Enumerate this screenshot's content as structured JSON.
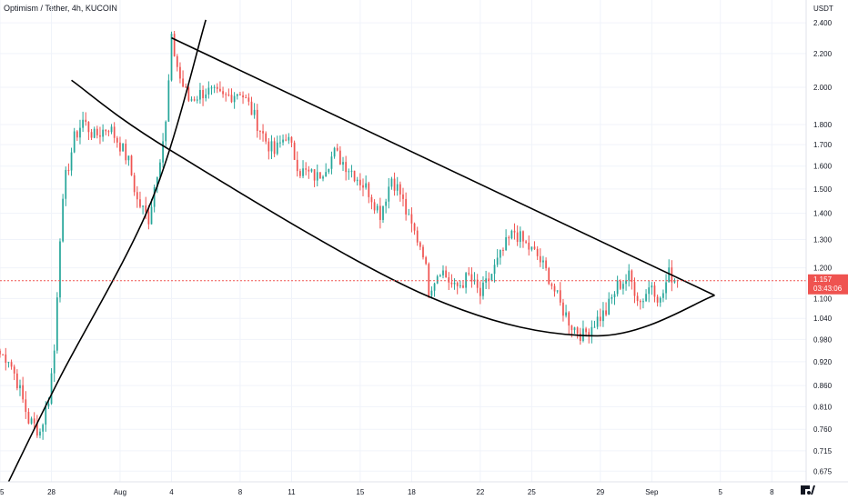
{
  "header": {
    "symbol": "Optimism / Tether",
    "interval": "4h",
    "exchange": "KUCOIN",
    "separator": ", "
  },
  "chart_data": {
    "type": "candlestick",
    "currency": "USDT",
    "y_scale": "log",
    "ylim": [
      0.655,
      2.56
    ],
    "y_ticks": [
      2.4,
      2.2,
      2.0,
      1.8,
      1.7,
      1.6,
      1.5,
      1.4,
      1.3,
      1.2,
      1.1,
      1.04,
      0.98,
      0.92,
      0.86,
      0.81,
      0.76,
      0.715,
      0.675
    ],
    "y_tick_labels": [
      "2.400",
      "2.200",
      "2.000",
      "1.800",
      "1.700",
      "1.600",
      "1.500",
      "1.400",
      "1.300",
      "1.200",
      "1.100",
      "1.040",
      "0.980",
      "0.920",
      "0.860",
      "0.810",
      "0.760",
      "0.715",
      "0.675"
    ],
    "x_start": "2022-07-25",
    "x_end": "2022-09-10",
    "x_ticks": [
      {
        "date": "2022-07-25",
        "label": "25"
      },
      {
        "date": "2022-07-28",
        "label": "28"
      },
      {
        "date": "2022-08-01",
        "label": "Aug"
      },
      {
        "date": "2022-08-04",
        "label": "4"
      },
      {
        "date": "2022-08-08",
        "label": "8"
      },
      {
        "date": "2022-08-11",
        "label": "11"
      },
      {
        "date": "2022-08-15",
        "label": "15"
      },
      {
        "date": "2022-08-18",
        "label": "18"
      },
      {
        "date": "2022-08-22",
        "label": "22"
      },
      {
        "date": "2022-08-25",
        "label": "25"
      },
      {
        "date": "2022-08-29",
        "label": "29"
      },
      {
        "date": "2022-09-01",
        "label": "Sep"
      },
      {
        "date": "2022-09-05",
        "label": "5"
      },
      {
        "date": "2022-09-08",
        "label": "8"
      }
    ],
    "last_price": 1.157,
    "last_price_label": "1.157",
    "countdown": "03:43:06",
    "colors": {
      "up": "#26a69a",
      "down": "#ef5350",
      "grid": "#f0f3fa",
      "text": "#131722",
      "line": "#000000"
    },
    "candles_anchor": [
      [
        "2022-07-25T00:00",
        0.94
      ],
      [
        "2022-07-25T12:00",
        0.93
      ],
      [
        "2022-07-26T00:00",
        0.87
      ],
      [
        "2022-07-26T16:00",
        0.78
      ],
      [
        "2022-07-27T08:00",
        0.755
      ],
      [
        "2022-07-27T20:00",
        0.83
      ],
      [
        "2022-07-28T04:00",
        0.95
      ],
      [
        "2022-07-28T12:00",
        1.32
      ],
      [
        "2022-07-28T20:00",
        1.55
      ],
      [
        "2022-07-29T08:00",
        1.73
      ],
      [
        "2022-07-29T20:00",
        1.82
      ],
      [
        "2022-07-30T12:00",
        1.74
      ],
      [
        "2022-07-31T08:00",
        1.79
      ],
      [
        "2022-08-01T00:00",
        1.7
      ],
      [
        "2022-08-01T12:00",
        1.62
      ],
      [
        "2022-08-02T00:00",
        1.45
      ],
      [
        "2022-08-02T16:00",
        1.38
      ],
      [
        "2022-08-03T04:00",
        1.58
      ],
      [
        "2022-08-03T16:00",
        1.8
      ],
      [
        "2022-08-04T00:00",
        2.28
      ],
      [
        "2022-08-04T12:00",
        2.05
      ],
      [
        "2022-08-05T00:00",
        1.93
      ],
      [
        "2022-08-06T00:00",
        1.98
      ],
      [
        "2022-08-07T00:00",
        1.94
      ],
      [
        "2022-08-08T00:00",
        1.98
      ],
      [
        "2022-08-08T12:00",
        1.9
      ],
      [
        "2022-08-09T12:00",
        1.72
      ],
      [
        "2022-08-10T00:00",
        1.66
      ],
      [
        "2022-08-10T16:00",
        1.75
      ],
      [
        "2022-08-11T12:00",
        1.58
      ],
      [
        "2022-08-12T12:00",
        1.55
      ],
      [
        "2022-08-13T12:00",
        1.66
      ],
      [
        "2022-08-14T12:00",
        1.58
      ],
      [
        "2022-08-15T12:00",
        1.49
      ],
      [
        "2022-08-16T04:00",
        1.4
      ],
      [
        "2022-08-16T20:00",
        1.55
      ],
      [
        "2022-08-17T08:00",
        1.48
      ],
      [
        "2022-08-17T20:00",
        1.37
      ],
      [
        "2022-08-18T16:00",
        1.26
      ],
      [
        "2022-08-19T00:00",
        1.13
      ],
      [
        "2022-08-19T16:00",
        1.2
      ],
      [
        "2022-08-20T12:00",
        1.13
      ],
      [
        "2022-08-21T08:00",
        1.17
      ],
      [
        "2022-08-22T00:00",
        1.11
      ],
      [
        "2022-08-22T16:00",
        1.18
      ],
      [
        "2022-08-23T12:00",
        1.28
      ],
      [
        "2022-08-24T00:00",
        1.33
      ],
      [
        "2022-08-24T12:00",
        1.29
      ],
      [
        "2022-08-25T08:00",
        1.24
      ],
      [
        "2022-08-26T00:00",
        1.17
      ],
      [
        "2022-08-26T16:00",
        1.08
      ],
      [
        "2022-08-27T08:00",
        1.02
      ],
      [
        "2022-08-28T00:00",
        0.99
      ],
      [
        "2022-08-28T16:00",
        1.03
      ],
      [
        "2022-08-29T08:00",
        1.06
      ],
      [
        "2022-08-30T00:00",
        1.14
      ],
      [
        "2022-08-30T16:00",
        1.17
      ],
      [
        "2022-08-31T08:00",
        1.09
      ],
      [
        "2022-09-01T00:00",
        1.15
      ],
      [
        "2022-09-01T12:00",
        1.09
      ],
      [
        "2022-09-02T00:00",
        1.18
      ],
      [
        "2022-09-02T12:00",
        1.157
      ]
    ],
    "annotations": [
      {
        "kind": "line",
        "points": [
          [
            "2022-08-04T00:00",
            2.3
          ],
          [
            "2022-09-04T16:00",
            1.11
          ]
        ]
      },
      {
        "kind": "curve",
        "points": [
          [
            "2022-07-25T12:00",
            0.655
          ],
          [
            "2022-07-28T12:00",
            0.88
          ],
          [
            "2022-08-02T20:00",
            1.45
          ],
          [
            "2022-08-06T00:00",
            2.42
          ]
        ]
      },
      {
        "kind": "curve",
        "points": [
          [
            "2022-07-29T04:00",
            2.04
          ],
          [
            "2022-08-04T00:00",
            1.67
          ],
          [
            "2022-08-18T20:00",
            1.11
          ],
          [
            "2022-08-28T20:00",
            0.99
          ],
          [
            "2022-09-04T16:00",
            1.11
          ]
        ]
      }
    ]
  }
}
